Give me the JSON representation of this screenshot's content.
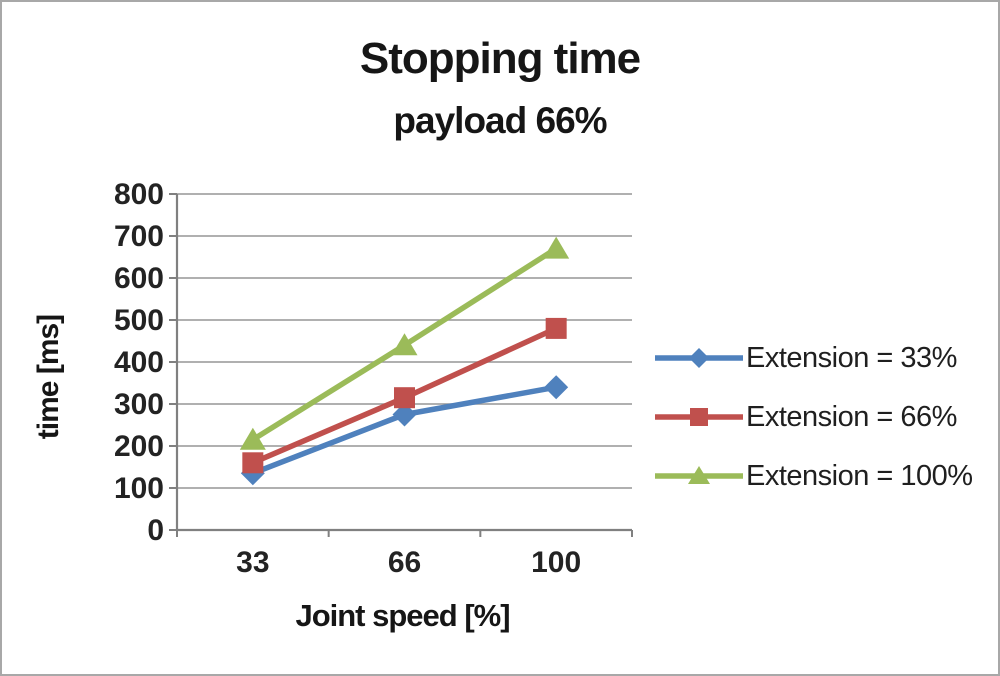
{
  "chart_data": {
    "type": "line",
    "title": "Stopping time",
    "subtitle": "payload 66%",
    "xlabel": "Joint speed [%]",
    "ylabel": "time [ms]",
    "categories": [
      "33",
      "66",
      "100"
    ],
    "series": [
      {
        "name": "Extension = 33%",
        "marker": "diamond",
        "color": "#4F81BD",
        "values": [
          135,
          275,
          340
        ]
      },
      {
        "name": "Extension = 66%",
        "marker": "square",
        "color": "#C0504D",
        "values": [
          160,
          315,
          480
        ]
      },
      {
        "name": "Extension = 100%",
        "marker": "triangle",
        "color": "#9BBB59",
        "values": [
          215,
          440,
          670
        ]
      }
    ],
    "ylim": [
      0,
      800
    ],
    "ytick_step": 100,
    "yticks": [
      0,
      100,
      200,
      300,
      400,
      500,
      600,
      700,
      800
    ],
    "grid": true,
    "legend_position": "right",
    "colors": {
      "gridline": "#969696",
      "axis": "#808080",
      "text": "#232323",
      "title_text": "#161616",
      "background": "#ffffff",
      "frame_border": "#a8a8a8"
    }
  }
}
